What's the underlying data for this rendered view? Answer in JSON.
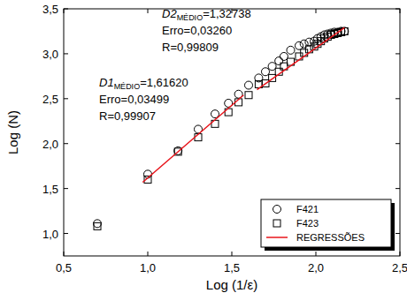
{
  "chart_data": {
    "type": "scatter",
    "x_label": "Log (1/ε)",
    "y_label": "Log (N)",
    "x": [
      0.7,
      1.0,
      1.18,
      1.3,
      1.4,
      1.48,
      1.54,
      1.6,
      1.66,
      1.7,
      1.74,
      1.78,
      1.81,
      1.85,
      1.9,
      1.93,
      1.96,
      1.99,
      2.01,
      2.03,
      2.05,
      2.07,
      2.09,
      2.11,
      2.13,
      2.15,
      2.17
    ],
    "series": [
      {
        "name": "F421",
        "color": "#000000",
        "marker": "circle",
        "values": [
          1.11,
          1.66,
          1.92,
          2.16,
          2.33,
          2.45,
          2.55,
          2.65,
          2.73,
          2.8,
          2.86,
          2.92,
          2.97,
          3.04,
          3.09,
          3.11,
          3.13,
          3.14,
          3.17,
          3.19,
          3.21,
          3.22,
          3.23,
          3.24,
          3.24,
          3.25,
          3.25
        ]
      },
      {
        "name": "F423",
        "color": "#000000",
        "marker": "square",
        "values": [
          1.08,
          1.6,
          1.91,
          2.07,
          2.22,
          2.35,
          2.46,
          2.54,
          2.66,
          2.67,
          2.73,
          2.8,
          2.86,
          2.91,
          2.97,
          3.01,
          3.05,
          3.08,
          3.11,
          3.14,
          3.17,
          3.19,
          3.21,
          3.22,
          3.23,
          3.24,
          3.25
        ]
      },
      {
        "name": "REGRESSÕES",
        "type": "line",
        "color": "#e8141b",
        "line_style": "solid",
        "x": [
          0.97,
          1.57,
          1.61,
          1.65,
          2.17
        ],
        "values": [
          1.57,
          2.54,
          null,
          2.6,
          3.29
        ]
      }
    ],
    "annotations": [
      {
        "symbol": "D1",
        "subscript": "MÉDIO",
        "text": "=1,61620",
        "lines": [
          "Erro=0,03499",
          "R=0,99907"
        ]
      },
      {
        "symbol": "D2",
        "subscript": "MÉDIO",
        "text": "=1,32738",
        "lines": [
          "Erro=0,03260",
          "R=0,99809"
        ]
      }
    ],
    "xlim": [
      0.5,
      2.5
    ],
    "xticks": [
      {
        "value": 0.5,
        "label": "0,5"
      },
      {
        "value": 1.0,
        "label": "1,0"
      },
      {
        "value": 1.5,
        "label": "1,5"
      },
      {
        "value": 2.0,
        "label": "2,0"
      },
      {
        "value": 2.5,
        "label": "2,5"
      }
    ],
    "ylim": [
      0.75,
      3.5
    ],
    "yticks": [
      {
        "value": 1.0,
        "label": "1,0"
      },
      {
        "value": 1.5,
        "label": "1,5"
      },
      {
        "value": 2.0,
        "label": "2,0"
      },
      {
        "value": 2.5,
        "label": "2,5"
      },
      {
        "value": 3.0,
        "label": "3,0"
      },
      {
        "value": 3.5,
        "label": "3,5"
      }
    ],
    "grid": false,
    "legend": "lower right"
  }
}
